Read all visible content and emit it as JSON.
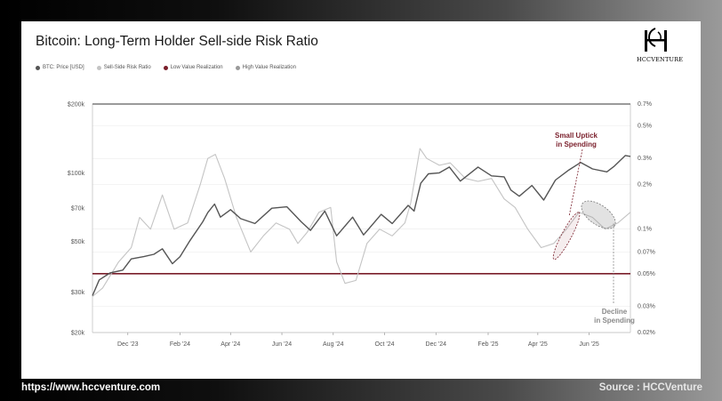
{
  "page": {
    "website": "https://www.hccventure.com",
    "source": "Source : HCCVenture",
    "logo_text": "HCCVENTURE"
  },
  "colors": {
    "price": "#555555",
    "ratio": "#c4c4c4",
    "low": "#7a1f2b",
    "high": "#9a9a9a"
  },
  "chart_data": {
    "type": "line",
    "title": "Bitcoin: Long-Term Holder Sell-side Risk Ratio",
    "legend": [
      {
        "label": "BTC: Price [USD]",
        "color": "#555555"
      },
      {
        "label": "Sell-Side Risk Ratio",
        "color": "#c4c4c4"
      },
      {
        "label": "Low Value Realization",
        "color": "#7a1f2b"
      },
      {
        "label": "High Value Realization",
        "color": "#9a9a9a"
      }
    ],
    "x_ticks": [
      "Dec '23",
      "Feb '24",
      "Apr '24",
      "Jun '24",
      "Aug '24",
      "Oct '24",
      "Dec '24",
      "Feb '25",
      "Apr '25",
      "Jun '25"
    ],
    "x_range": [
      "2023-10-20",
      "2025-07-20"
    ],
    "y_left_ticks": [
      {
        "label": "$200k",
        "value": 200000
      },
      {
        "label": "$100k",
        "value": 100000
      },
      {
        "label": "$70k",
        "value": 70000
      },
      {
        "label": "$50k",
        "value": 50000
      },
      {
        "label": "$30k",
        "value": 30000
      },
      {
        "label": "$20k",
        "value": 20000
      }
    ],
    "y_right_ticks": [
      {
        "label": "0.7%",
        "value": 0.7
      },
      {
        "label": "0.5%",
        "value": 0.5
      },
      {
        "label": "0.3%",
        "value": 0.3
      },
      {
        "label": "0.2%",
        "value": 0.2
      },
      {
        "label": "0.1%",
        "value": 0.1
      },
      {
        "label": "0.07%",
        "value": 0.07
      },
      {
        "label": "0.05%",
        "value": 0.05
      },
      {
        "label": "0.03%",
        "value": 0.03
      },
      {
        "label": "0.02%",
        "value": 0.02
      }
    ],
    "y_left_scale": "log",
    "y_right_scale": "log",
    "y_left_range": [
      20000,
      200000
    ],
    "y_right_range": [
      0.02,
      0.7
    ],
    "low_value_threshold": 0.05,
    "high_value_threshold": 0.7,
    "series": [
      {
        "name": "BTC: Price [USD]",
        "points": [
          [
            "2023-10-20",
            29000
          ],
          [
            "2023-10-28",
            34000
          ],
          [
            "2023-11-10",
            36500
          ],
          [
            "2023-11-25",
            37500
          ],
          [
            "2023-12-05",
            42000
          ],
          [
            "2023-12-20",
            43000
          ],
          [
            "2024-01-01",
            44000
          ],
          [
            "2024-01-11",
            46500
          ],
          [
            "2024-01-23",
            40000
          ],
          [
            "2024-02-01",
            43000
          ],
          [
            "2024-02-12",
            50000
          ],
          [
            "2024-02-28",
            61000
          ],
          [
            "2024-03-05",
            67000
          ],
          [
            "2024-03-13",
            73000
          ],
          [
            "2024-03-20",
            64000
          ],
          [
            "2024-04-01",
            69000
          ],
          [
            "2024-04-13",
            63000
          ],
          [
            "2024-04-30",
            60000
          ],
          [
            "2024-05-20",
            70000
          ],
          [
            "2024-06-07",
            71000
          ],
          [
            "2024-06-24",
            61000
          ],
          [
            "2024-07-05",
            56000
          ],
          [
            "2024-07-22",
            68000
          ],
          [
            "2024-08-05",
            53000
          ],
          [
            "2024-08-24",
            64000
          ],
          [
            "2024-09-06",
            53500
          ],
          [
            "2024-09-27",
            65800
          ],
          [
            "2024-10-10",
            60000
          ],
          [
            "2024-10-29",
            72000
          ],
          [
            "2024-11-05",
            68000
          ],
          [
            "2024-11-13",
            90000
          ],
          [
            "2024-11-22",
            99000
          ],
          [
            "2024-12-05",
            100000
          ],
          [
            "2024-12-17",
            106000
          ],
          [
            "2024-12-30",
            92000
          ],
          [
            "2025-01-20",
            106000
          ],
          [
            "2025-02-05",
            97000
          ],
          [
            "2025-02-20",
            96000
          ],
          [
            "2025-02-28",
            84000
          ],
          [
            "2025-03-10",
            79000
          ],
          [
            "2025-03-25",
            88000
          ],
          [
            "2025-04-08",
            76000
          ],
          [
            "2025-04-22",
            93000
          ],
          [
            "2025-05-08",
            103000
          ],
          [
            "2025-05-22",
            111000
          ],
          [
            "2025-06-05",
            104000
          ],
          [
            "2025-06-22",
            101000
          ],
          [
            "2025-07-01",
            107000
          ],
          [
            "2025-07-14",
            119000
          ],
          [
            "2025-07-20",
            118000
          ]
        ]
      },
      {
        "name": "Sell-Side Risk Ratio",
        "points": [
          [
            "2023-10-20",
            0.035
          ],
          [
            "2023-11-01",
            0.04
          ],
          [
            "2023-11-20",
            0.06
          ],
          [
            "2023-12-05",
            0.075
          ],
          [
            "2023-12-15",
            0.12
          ],
          [
            "2023-12-28",
            0.1
          ],
          [
            "2024-01-11",
            0.17
          ],
          [
            "2024-01-25",
            0.1
          ],
          [
            "2024-02-10",
            0.11
          ],
          [
            "2024-02-25",
            0.2
          ],
          [
            "2024-03-05",
            0.3
          ],
          [
            "2024-03-14",
            0.32
          ],
          [
            "2024-03-25",
            0.22
          ],
          [
            "2024-04-08",
            0.12
          ],
          [
            "2024-04-25",
            0.07
          ],
          [
            "2024-05-10",
            0.09
          ],
          [
            "2024-05-25",
            0.11
          ],
          [
            "2024-06-10",
            0.1
          ],
          [
            "2024-06-20",
            0.08
          ],
          [
            "2024-07-01",
            0.095
          ],
          [
            "2024-07-15",
            0.13
          ],
          [
            "2024-07-29",
            0.14
          ],
          [
            "2024-08-05",
            0.06
          ],
          [
            "2024-08-15",
            0.043
          ],
          [
            "2024-08-28",
            0.045
          ],
          [
            "2024-09-10",
            0.08
          ],
          [
            "2024-09-25",
            0.1
          ],
          [
            "2024-10-10",
            0.09
          ],
          [
            "2024-10-25",
            0.11
          ],
          [
            "2024-11-01",
            0.15
          ],
          [
            "2024-11-12",
            0.35
          ],
          [
            "2024-11-20",
            0.3
          ],
          [
            "2024-12-05",
            0.27
          ],
          [
            "2024-12-18",
            0.28
          ],
          [
            "2025-01-05",
            0.22
          ],
          [
            "2025-01-20",
            0.21
          ],
          [
            "2025-02-05",
            0.22
          ],
          [
            "2025-02-20",
            0.16
          ],
          [
            "2025-03-05",
            0.14
          ],
          [
            "2025-03-20",
            0.1
          ],
          [
            "2025-04-05",
            0.075
          ],
          [
            "2025-04-20",
            0.08
          ],
          [
            "2025-05-05",
            0.1
          ],
          [
            "2025-05-20",
            0.13
          ],
          [
            "2025-06-05",
            0.12
          ],
          [
            "2025-06-20",
            0.1
          ],
          [
            "2025-07-05",
            0.11
          ],
          [
            "2025-07-20",
            0.13
          ]
        ]
      }
    ],
    "annotations": [
      {
        "text": [
          "Small Uptick",
          "in Spending"
        ],
        "color": "#7a1f2b"
      },
      {
        "text": [
          "Decline",
          "in Spending"
        ],
        "color": "#8a8a8a"
      }
    ]
  }
}
